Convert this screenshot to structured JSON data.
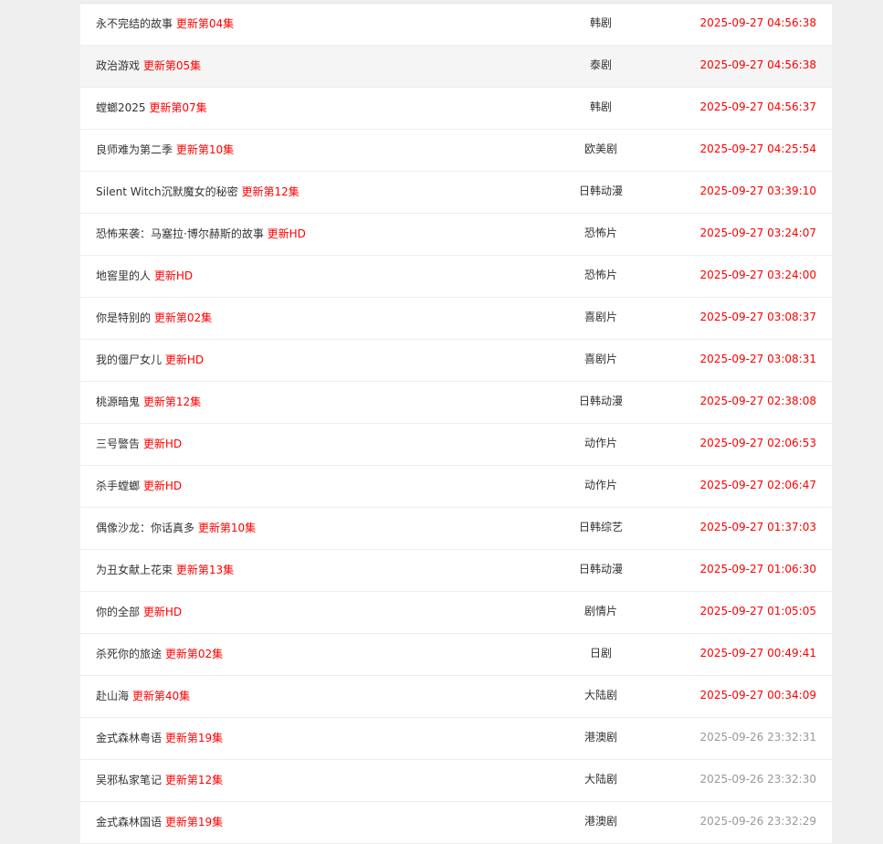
{
  "colors": {
    "update": "#ff0000",
    "today_time": "#ff0000",
    "old_time": "#999999"
  },
  "rows": [
    {
      "title": "永不完结的故事",
      "update": "更新第04集",
      "category": "韩剧",
      "time": "2025-09-27 04:56:38",
      "old": false
    },
    {
      "title": "政治游戏",
      "update": "更新第05集",
      "category": "泰剧",
      "time": "2025-09-27 04:56:38",
      "old": false
    },
    {
      "title": "螳螂2025",
      "update": "更新第07集",
      "category": "韩剧",
      "time": "2025-09-27 04:56:37",
      "old": false
    },
    {
      "title": "良师难为第二季",
      "update": "更新第10集",
      "category": "欧美剧",
      "time": "2025-09-27 04:25:54",
      "old": false
    },
    {
      "title": "Silent Witch沉默魔女的秘密",
      "update": "更新第12集",
      "category": "日韩动漫",
      "time": "2025-09-27 03:39:10",
      "old": false
    },
    {
      "title": "恐怖来袭：马塞拉·博尔赫斯的故事",
      "update": "更新HD",
      "category": "恐怖片",
      "time": "2025-09-27 03:24:07",
      "old": false
    },
    {
      "title": "地窖里的人",
      "update": "更新HD",
      "category": "恐怖片",
      "time": "2025-09-27 03:24:00",
      "old": false
    },
    {
      "title": "你是特别的",
      "update": "更新第02集",
      "category": "喜剧片",
      "time": "2025-09-27 03:08:37",
      "old": false
    },
    {
      "title": "我的僵尸女儿",
      "update": "更新HD",
      "category": "喜剧片",
      "time": "2025-09-27 03:08:31",
      "old": false
    },
    {
      "title": "桃源暗鬼",
      "update": "更新第12集",
      "category": "日韩动漫",
      "time": "2025-09-27 02:38:08",
      "old": false
    },
    {
      "title": "三号警告",
      "update": "更新HD",
      "category": "动作片",
      "time": "2025-09-27 02:06:53",
      "old": false
    },
    {
      "title": "杀手螳螂",
      "update": "更新HD",
      "category": "动作片",
      "time": "2025-09-27 02:06:47",
      "old": false
    },
    {
      "title": "偶像沙龙：你话真多",
      "update": "更新第10集",
      "category": "日韩综艺",
      "time": "2025-09-27 01:37:03",
      "old": false
    },
    {
      "title": "为丑女献上花束",
      "update": "更新第13集",
      "category": "日韩动漫",
      "time": "2025-09-27 01:06:30",
      "old": false
    },
    {
      "title": "你的全部",
      "update": "更新HD",
      "category": "剧情片",
      "time": "2025-09-27 01:05:05",
      "old": false
    },
    {
      "title": "杀死你的旅途",
      "update": "更新第02集",
      "category": "日剧",
      "time": "2025-09-27 00:49:41",
      "old": false
    },
    {
      "title": "赴山海",
      "update": "更新第40集",
      "category": "大陆剧",
      "time": "2025-09-27 00:34:09",
      "old": false
    },
    {
      "title": "金式森林粤语",
      "update": "更新第19集",
      "category": "港澳剧",
      "time": "2025-09-26 23:32:31",
      "old": true
    },
    {
      "title": "吴邪私家笔记",
      "update": "更新第12集",
      "category": "大陆剧",
      "time": "2025-09-26 23:32:30",
      "old": true
    },
    {
      "title": "金式森林国语",
      "update": "更新第19集",
      "category": "港澳剧",
      "time": "2025-09-26 23:32:29",
      "old": true
    }
  ]
}
